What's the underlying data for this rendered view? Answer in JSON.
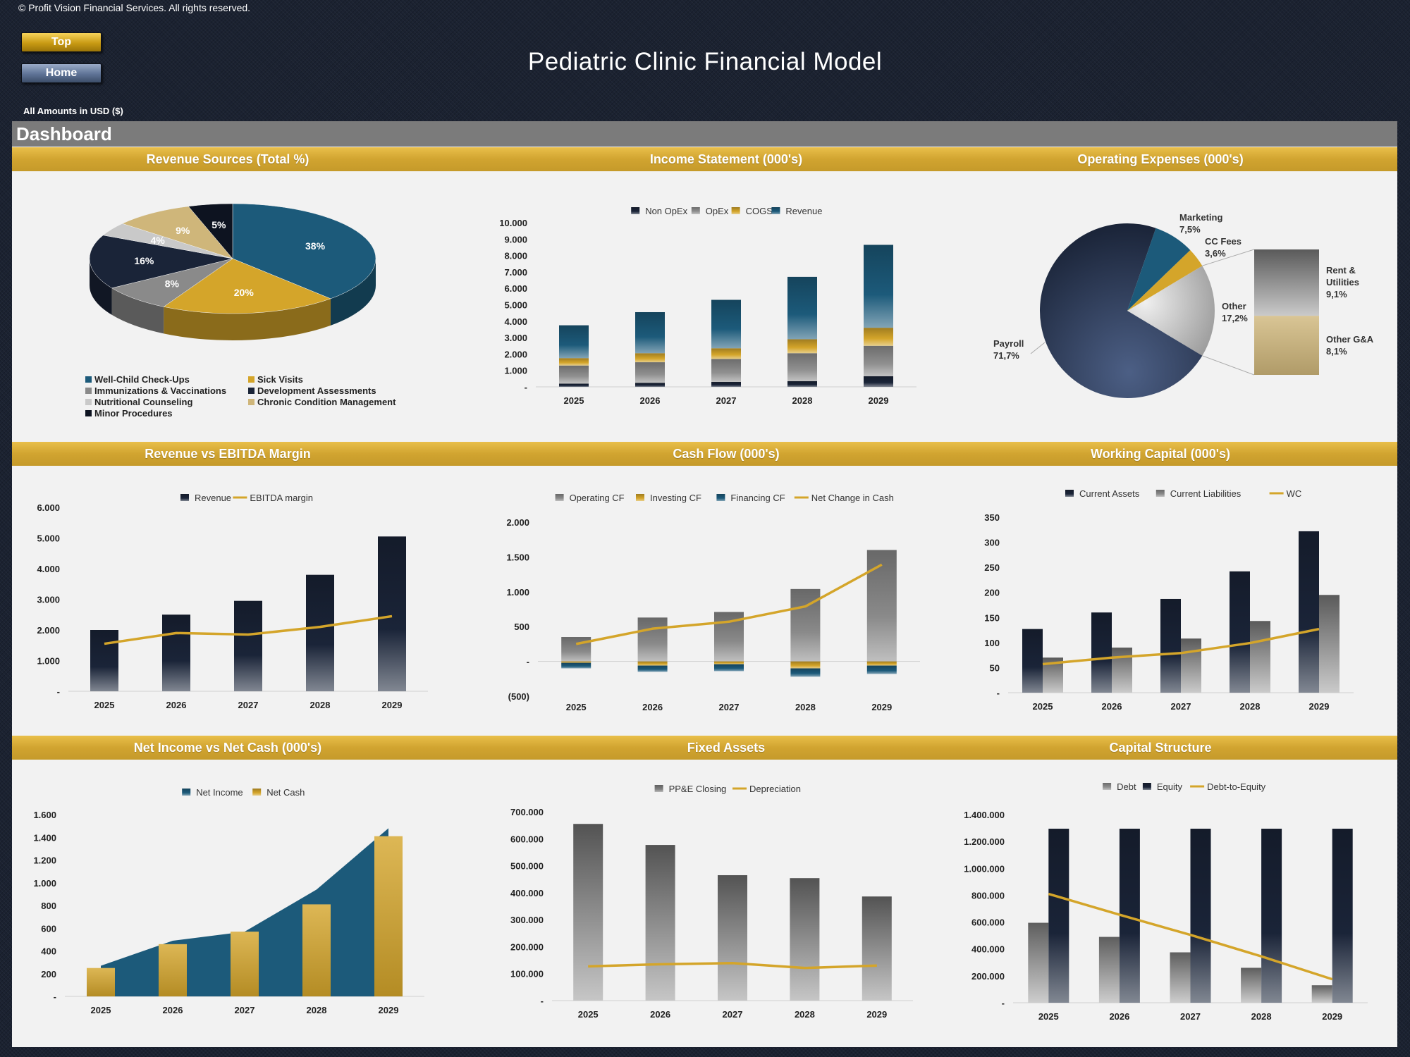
{
  "header": {
    "copyright": "© Profit Vision Financial Services. All rights reserved.",
    "top_button": "Top",
    "home_button": "Home",
    "title": "Pediatric Clinic Financial Model",
    "amounts_note": "All Amounts in  USD ($)",
    "dashboard_label": "Dashboard"
  },
  "colors": {
    "teal": "#1c5a7a",
    "gold": "#d4a52a",
    "navy": "#1a2438",
    "gray": "#808080",
    "light_gray": "#c9c9c9",
    "sand": "#cfb67a"
  },
  "chart_data": [
    {
      "id": "revenue_sources",
      "type": "pie",
      "title": "Revenue Sources (Total %)",
      "labels": [
        "Well-Child Check-Ups",
        "Sick Visits",
        "Immunizations & Vaccinations",
        "Development Assessments",
        "Nutritional Counseling",
        "Chronic Condition Management",
        "Minor Procedures"
      ],
      "values": [
        38,
        20,
        8,
        16,
        4,
        9,
        5
      ],
      "value_labels": [
        "38%",
        "20%",
        "8%",
        "16%",
        "4%",
        "9%",
        "5%"
      ],
      "colors": [
        "#1c5a7a",
        "#d4a52a",
        "#8a8a8a",
        "#1a2438",
        "#c9c9c9",
        "#cfb67a",
        "#0d1320"
      ],
      "legend_position": "bottom",
      "style": "3d"
    },
    {
      "id": "income_statement",
      "type": "bar",
      "stacked": true,
      "title": "Income Statement (000's)",
      "categories": [
        "2025",
        "2026",
        "2027",
        "2028",
        "2029"
      ],
      "series": [
        {
          "name": "Non OpEx",
          "values": [
            200,
            250,
            300,
            350,
            650
          ],
          "color": "#1a2438"
        },
        {
          "name": "OpEx",
          "values": [
            1100,
            1250,
            1400,
            1700,
            1850
          ],
          "color": "#909090"
        },
        {
          "name": "COGS",
          "values": [
            450,
            550,
            650,
            850,
            1100
          ],
          "color": "#d4a52a"
        },
        {
          "name": "Revenue",
          "values": [
            2000,
            2500,
            2950,
            3800,
            5050
          ],
          "color": "#1c5a7a"
        }
      ],
      "ylim": [
        0,
        10000
      ],
      "yticks": [
        "10.000",
        "9.000",
        "8.000",
        "7.000",
        "6.000",
        "5.000",
        "4.000",
        "3.000",
        "2.000",
        "1.000",
        "-"
      ],
      "legend_position": "top"
    },
    {
      "id": "operating_expenses",
      "type": "pie",
      "subtype": "bar-of-pie",
      "title": "Operating Expenses (000's)",
      "labels": [
        "Payroll",
        "Marketing",
        "CC Fees",
        "Other",
        "Rent & Utilities",
        "Other G&A"
      ],
      "values": [
        71.7,
        7.5,
        3.6,
        17.2,
        9.1,
        8.1
      ],
      "value_labels": [
        "71,7%",
        "7,5%",
        "3,6%",
        "17,2%",
        "9,1%",
        "8,1%"
      ],
      "colors": [
        "#1a2438",
        "#1c5a7a",
        "#d4a52a",
        "#c9c9c9",
        "#8a8a8a",
        "#cfb67a"
      ]
    },
    {
      "id": "revenue_vs_ebitda",
      "type": "bar",
      "title": "Revenue vs EBITDA Margin",
      "categories": [
        "2025",
        "2026",
        "2027",
        "2028",
        "2029"
      ],
      "series": [
        {
          "name": "Revenue",
          "type": "bar",
          "values": [
            2000,
            2500,
            2950,
            3800,
            5050
          ],
          "color": "#1a2438"
        },
        {
          "name": "EBITDA margin",
          "type": "line",
          "values": [
            1550,
            1900,
            1850,
            2100,
            2450
          ],
          "color": "#d4a52a"
        }
      ],
      "ylim": [
        0,
        6000
      ],
      "yticks": [
        "6.000",
        "5.000",
        "4.000",
        "3.000",
        "2.000",
        "1.000",
        "-"
      ],
      "legend_position": "top"
    },
    {
      "id": "cash_flow",
      "type": "bar",
      "stacked": true,
      "title": "Cash Flow (000's)",
      "categories": [
        "2025",
        "2026",
        "2027",
        "2028",
        "2029"
      ],
      "series": [
        {
          "name": "Operating CF",
          "type": "bar",
          "values": [
            350,
            630,
            710,
            1040,
            1600
          ],
          "color": "#8a8a8a"
        },
        {
          "name": "Investing CF",
          "type": "bar",
          "values": [
            -20,
            -60,
            -40,
            -100,
            -60
          ],
          "color": "#d4a52a"
        },
        {
          "name": "Financing CF",
          "type": "bar",
          "values": [
            -80,
            -90,
            -100,
            -120,
            -120
          ],
          "color": "#1c5a7a"
        },
        {
          "name": "Net Change in Cash",
          "type": "line",
          "values": [
            250,
            470,
            570,
            790,
            1390
          ],
          "color": "#d4a52a"
        }
      ],
      "ylim": [
        -500,
        2000
      ],
      "yticks": [
        "2.000",
        "1.500",
        "1.000",
        "500",
        "-",
        "(500)"
      ],
      "legend_position": "top"
    },
    {
      "id": "working_capital",
      "type": "bar",
      "title": "Working Capital (000's)",
      "categories": [
        "2025",
        "2026",
        "2027",
        "2028",
        "2029"
      ],
      "series": [
        {
          "name": "Current Assets",
          "type": "bar",
          "values": [
            127,
            160,
            187,
            242,
            322
          ],
          "color": "#1a2438"
        },
        {
          "name": "Current Liabilities",
          "type": "bar",
          "values": [
            70,
            90,
            108,
            143,
            195
          ],
          "color": "#8a8a8a"
        },
        {
          "name": "WC",
          "type": "line",
          "values": [
            57,
            70,
            79,
            99,
            127
          ],
          "color": "#d4a52a"
        }
      ],
      "ylim": [
        0,
        350
      ],
      "yticks": [
        "350",
        "300",
        "250",
        "200",
        "150",
        "100",
        "50",
        "-"
      ],
      "legend_position": "top"
    },
    {
      "id": "net_income_vs_cash",
      "type": "area",
      "title": "Net Income vs Net Cash (000's)",
      "categories": [
        "2025",
        "2026",
        "2027",
        "2028",
        "2029"
      ],
      "series": [
        {
          "name": "Net Income",
          "type": "area",
          "values": [
            270,
            490,
            570,
            940,
            1480
          ],
          "color": "#1c5a7a"
        },
        {
          "name": "Net Cash",
          "type": "bar",
          "values": [
            250,
            460,
            570,
            810,
            1410
          ],
          "color": "#d4a52a"
        }
      ],
      "ylim": [
        0,
        1600
      ],
      "yticks": [
        "1.600",
        "1.400",
        "1.200",
        "1.000",
        "800",
        "600",
        "400",
        "200",
        "-"
      ],
      "legend_position": "top"
    },
    {
      "id": "fixed_assets",
      "type": "bar",
      "title": "Fixed Assets",
      "categories": [
        "2025",
        "2026",
        "2027",
        "2028",
        "2029"
      ],
      "series": [
        {
          "name": "PP&E Closing",
          "type": "bar",
          "values": [
            655000,
            577000,
            465000,
            454000,
            386000
          ],
          "color": "#808080"
        },
        {
          "name": "Depreciation",
          "type": "line",
          "values": [
            127000,
            135000,
            139000,
            121000,
            130000
          ],
          "color": "#d4a52a"
        }
      ],
      "ylim": [
        0,
        700000
      ],
      "yticks": [
        "700.000",
        "600.000",
        "500.000",
        "400.000",
        "300.000",
        "200.000",
        "100.000",
        "-"
      ],
      "legend_position": "top"
    },
    {
      "id": "capital_structure",
      "type": "bar",
      "title": "Capital Structure",
      "categories": [
        "2025",
        "2026",
        "2027",
        "2028",
        "2029"
      ],
      "series": [
        {
          "name": "Debt",
          "type": "bar",
          "values": [
            595000,
            490000,
            375000,
            260000,
            130000
          ],
          "color": "#909090"
        },
        {
          "name": "Equity",
          "type": "bar",
          "values": [
            1295000,
            1295000,
            1295000,
            1295000,
            1295000
          ],
          "color": "#1a2438"
        },
        {
          "name": "Debt-to-Equity",
          "type": "line",
          "values": [
            810000,
            655000,
            505000,
            345000,
            175000
          ],
          "color": "#d4a52a"
        }
      ],
      "ylim": [
        0,
        1400000
      ],
      "yticks": [
        "1.400.000",
        "1.200.000",
        "1.000.000",
        "800.000",
        "600.000",
        "400.000",
        "200.000",
        "-"
      ],
      "legend_position": "top"
    }
  ]
}
